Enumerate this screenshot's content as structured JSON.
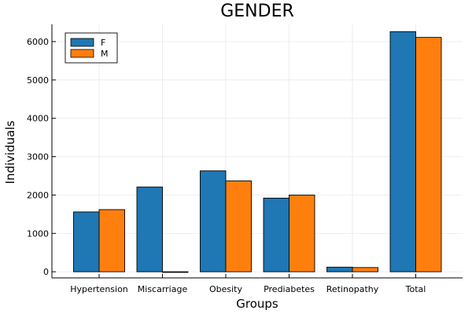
{
  "chart_data": {
    "type": "bar",
    "title": "GENDER",
    "xlabel": "Groups",
    "ylabel": "Individuals",
    "categories": [
      "Hypertension",
      "Miscarriage",
      "Obesity",
      "Prediabetes",
      "Retinopathy",
      "Total"
    ],
    "series": [
      {
        "name": "F",
        "color": "#1f77b4",
        "values": [
          1560,
          2210,
          2630,
          1920,
          120,
          6260
        ]
      },
      {
        "name": "M",
        "color": "#ff7f0e",
        "values": [
          1620,
          0,
          2370,
          2000,
          110,
          6110
        ]
      }
    ],
    "ylim": [
      -160,
      6450
    ],
    "yticks": [
      0,
      1000,
      2000,
      3000,
      4000,
      5000,
      6000
    ],
    "grid": true,
    "legend_position": "top-left"
  }
}
